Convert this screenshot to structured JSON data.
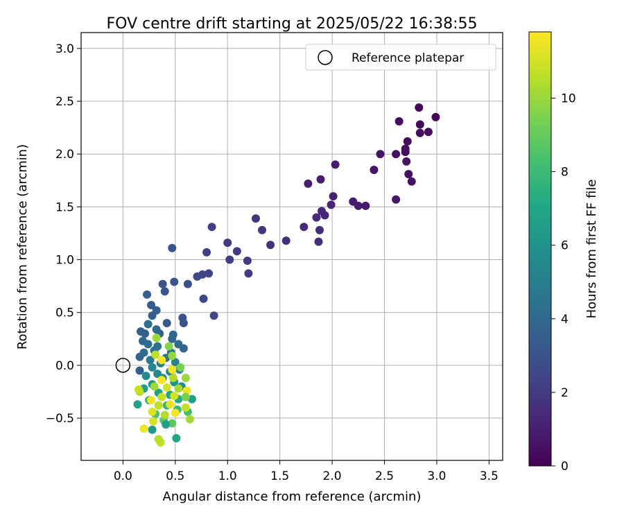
{
  "chart_data": {
    "type": "scatter",
    "title": "FOV centre drift starting at 2025/05/22 16:38:55",
    "xlabel": "Angular distance from reference (arcmin)",
    "ylabel": "Rotation from reference (arcmin)",
    "xlim": [
      -0.4,
      3.63
    ],
    "ylim": [
      -0.9,
      3.15
    ],
    "xticks": [
      "0.0",
      "0.5",
      "1.0",
      "1.5",
      "2.0",
      "2.5",
      "3.0",
      "3.5"
    ],
    "xtick_values": [
      0.0,
      0.5,
      1.0,
      1.5,
      2.0,
      2.5,
      3.0,
      3.5
    ],
    "yticks": [
      "−0.5",
      "0.0",
      "0.5",
      "1.0",
      "1.5",
      "2.0",
      "2.5",
      "3.0"
    ],
    "ytick_values": [
      -0.5,
      0.0,
      0.5,
      1.0,
      1.5,
      2.0,
      2.5,
      3.0
    ],
    "grid": true,
    "legend": {
      "position": "top-right",
      "entries": [
        "Reference platepar"
      ]
    },
    "colormap": "viridis",
    "colorbar": {
      "label": "Hours from first FF file",
      "range": [
        0,
        11.8
      ],
      "ticks": [
        "0",
        "2",
        "4",
        "6",
        "8",
        "10"
      ],
      "tick_values": [
        0,
        2,
        4,
        6,
        8,
        10
      ]
    },
    "reference_point": {
      "x": 0.0,
      "y": 0.0,
      "label": "Reference platepar"
    },
    "points": [
      [
        2.83,
        2.44,
        0.2
      ],
      [
        2.99,
        2.35,
        0.2
      ],
      [
        2.84,
        2.28,
        0.3
      ],
      [
        2.92,
        2.21,
        0.3
      ],
      [
        2.84,
        2.2,
        0.3
      ],
      [
        2.64,
        2.31,
        0.4
      ],
      [
        2.72,
        2.12,
        0.4
      ],
      [
        2.7,
        2.05,
        0.4
      ],
      [
        2.7,
        2.02,
        0.5
      ],
      [
        2.61,
        2.0,
        0.5
      ],
      [
        2.46,
        2.0,
        0.6
      ],
      [
        2.71,
        1.93,
        0.6
      ],
      [
        2.4,
        1.85,
        0.7
      ],
      [
        2.73,
        1.81,
        0.5
      ],
      [
        2.76,
        1.74,
        0.6
      ],
      [
        2.61,
        1.57,
        0.7
      ],
      [
        2.03,
        1.9,
        0.9
      ],
      [
        1.89,
        1.76,
        1.0
      ],
      [
        1.77,
        1.72,
        1.0
      ],
      [
        2.01,
        1.6,
        1.1
      ],
      [
        2.2,
        1.55,
        0.9
      ],
      [
        2.25,
        1.51,
        0.9
      ],
      [
        2.32,
        1.51,
        0.8
      ],
      [
        1.99,
        1.52,
        1.2
      ],
      [
        1.9,
        1.46,
        1.3
      ],
      [
        1.93,
        1.42,
        1.3
      ],
      [
        1.85,
        1.4,
        1.4
      ],
      [
        1.73,
        1.31,
        1.4
      ],
      [
        1.88,
        1.28,
        1.5
      ],
      [
        1.87,
        1.17,
        1.5
      ],
      [
        1.27,
        1.39,
        1.8
      ],
      [
        1.33,
        1.28,
        1.8
      ],
      [
        1.56,
        1.18,
        1.6
      ],
      [
        1.41,
        1.14,
        1.7
      ],
      [
        1.0,
        1.16,
        2.0
      ],
      [
        1.09,
        1.08,
        2.0
      ],
      [
        1.02,
        1.0,
        2.1
      ],
      [
        1.19,
        0.99,
        2.0
      ],
      [
        1.2,
        0.87,
        2.1
      ],
      [
        0.85,
        1.31,
        2.2
      ],
      [
        0.8,
        1.07,
        2.3
      ],
      [
        0.82,
        0.87,
        2.4
      ],
      [
        0.76,
        0.86,
        2.5
      ],
      [
        0.71,
        0.84,
        2.6
      ],
      [
        0.77,
        0.63,
        2.6
      ],
      [
        0.87,
        0.47,
        2.5
      ],
      [
        0.47,
        1.11,
        3.0
      ],
      [
        0.62,
        0.77,
        2.9
      ],
      [
        0.49,
        0.79,
        3.0
      ],
      [
        0.38,
        0.77,
        3.1
      ],
      [
        0.4,
        0.7,
        3.1
      ],
      [
        0.23,
        0.67,
        3.6
      ],
      [
        0.27,
        0.57,
        3.4
      ],
      [
        0.32,
        0.52,
        3.5
      ],
      [
        0.28,
        0.47,
        3.5
      ],
      [
        0.57,
        0.45,
        3.0
      ],
      [
        0.58,
        0.4,
        3.0
      ],
      [
        0.42,
        0.4,
        3.3
      ],
      [
        0.24,
        0.39,
        4.4
      ],
      [
        0.32,
        0.34,
        4.0
      ],
      [
        0.17,
        0.32,
        3.6
      ],
      [
        0.21,
        0.3,
        3.6
      ],
      [
        0.35,
        0.3,
        3.7
      ],
      [
        0.48,
        0.29,
        3.8
      ],
      [
        0.47,
        0.25,
        3.9
      ],
      [
        0.19,
        0.23,
        4.0
      ],
      [
        0.24,
        0.2,
        4.2
      ],
      [
        0.33,
        0.18,
        4.3
      ],
      [
        0.53,
        0.2,
        4.1
      ],
      [
        0.58,
        0.16,
        3.8
      ],
      [
        0.3,
        0.14,
        4.6
      ],
      [
        0.46,
        0.12,
        4.5
      ],
      [
        0.2,
        0.12,
        4.2
      ],
      [
        0.16,
        0.08,
        3.8
      ],
      [
        0.41,
        0.07,
        4.6
      ],
      [
        0.26,
        0.05,
        4.8
      ],
      [
        0.36,
        0.02,
        5.0
      ],
      [
        0.5,
        0.03,
        5.2
      ],
      [
        0.16,
        -0.05,
        3.5
      ],
      [
        0.28,
        -0.02,
        5.4
      ],
      [
        0.33,
        -0.08,
        5.6
      ],
      [
        0.45,
        -0.06,
        5.2
      ],
      [
        0.54,
        -0.04,
        5.0
      ],
      [
        0.22,
        -0.1,
        5.6
      ],
      [
        0.38,
        -0.12,
        5.8
      ],
      [
        0.49,
        -0.16,
        6.0
      ],
      [
        0.28,
        -0.18,
        6.2
      ],
      [
        0.56,
        -0.2,
        5.6
      ],
      [
        0.2,
        -0.22,
        6.5
      ],
      [
        0.34,
        -0.26,
        6.8
      ],
      [
        0.45,
        -0.28,
        7.0
      ],
      [
        0.53,
        -0.32,
        7.2
      ],
      [
        0.66,
        -0.32,
        6.6
      ],
      [
        0.14,
        -0.37,
        6.8
      ],
      [
        0.25,
        -0.33,
        7.6
      ],
      [
        0.42,
        -0.38,
        7.8
      ],
      [
        0.52,
        -0.42,
        8.0
      ],
      [
        0.62,
        -0.44,
        8.2
      ],
      [
        0.31,
        -0.46,
        8.4
      ],
      [
        0.39,
        -0.52,
        8.6
      ],
      [
        0.47,
        -0.55,
        8.8
      ],
      [
        0.41,
        -0.56,
        6.6
      ],
      [
        0.28,
        -0.61,
        6.3
      ],
      [
        0.51,
        -0.69,
        7.0
      ],
      [
        0.36,
        -0.73,
        10.8
      ],
      [
        0.34,
        -0.7,
        10.5
      ],
      [
        0.2,
        -0.6,
        11.5
      ],
      [
        0.29,
        -0.53,
        11.0
      ],
      [
        0.4,
        -0.47,
        10.4
      ],
      [
        0.64,
        -0.51,
        10.2
      ],
      [
        0.5,
        -0.45,
        11.6
      ],
      [
        0.28,
        -0.44,
        11.2
      ],
      [
        0.34,
        -0.38,
        10.6
      ],
      [
        0.45,
        -0.37,
        11.4
      ],
      [
        0.6,
        -0.4,
        10.7
      ],
      [
        0.16,
        -0.25,
        10.5
      ],
      [
        0.27,
        -0.33,
        11.5
      ],
      [
        0.37,
        -0.3,
        10.8
      ],
      [
        0.49,
        -0.29,
        11.0
      ],
      [
        0.61,
        -0.24,
        11.5
      ],
      [
        0.3,
        -0.2,
        10.1
      ],
      [
        0.42,
        -0.21,
        11.0
      ],
      [
        0.53,
        -0.22,
        10.2
      ],
      [
        0.37,
        -0.14,
        11.8
      ],
      [
        0.48,
        -0.12,
        10.4
      ],
      [
        0.6,
        -0.12,
        10.0
      ],
      [
        0.47,
        -0.04,
        11.6
      ],
      [
        0.37,
        0.05,
        11.7
      ],
      [
        0.31,
        0.1,
        10.6
      ],
      [
        0.32,
        0.26,
        10.0
      ],
      [
        0.44,
        0.18,
        9.6
      ],
      [
        0.47,
        0.09,
        9.9
      ],
      [
        0.55,
        -0.02,
        9.4
      ],
      [
        0.15,
        -0.23,
        10.8
      ],
      [
        0.6,
        -0.3,
        9.4
      ]
    ]
  }
}
